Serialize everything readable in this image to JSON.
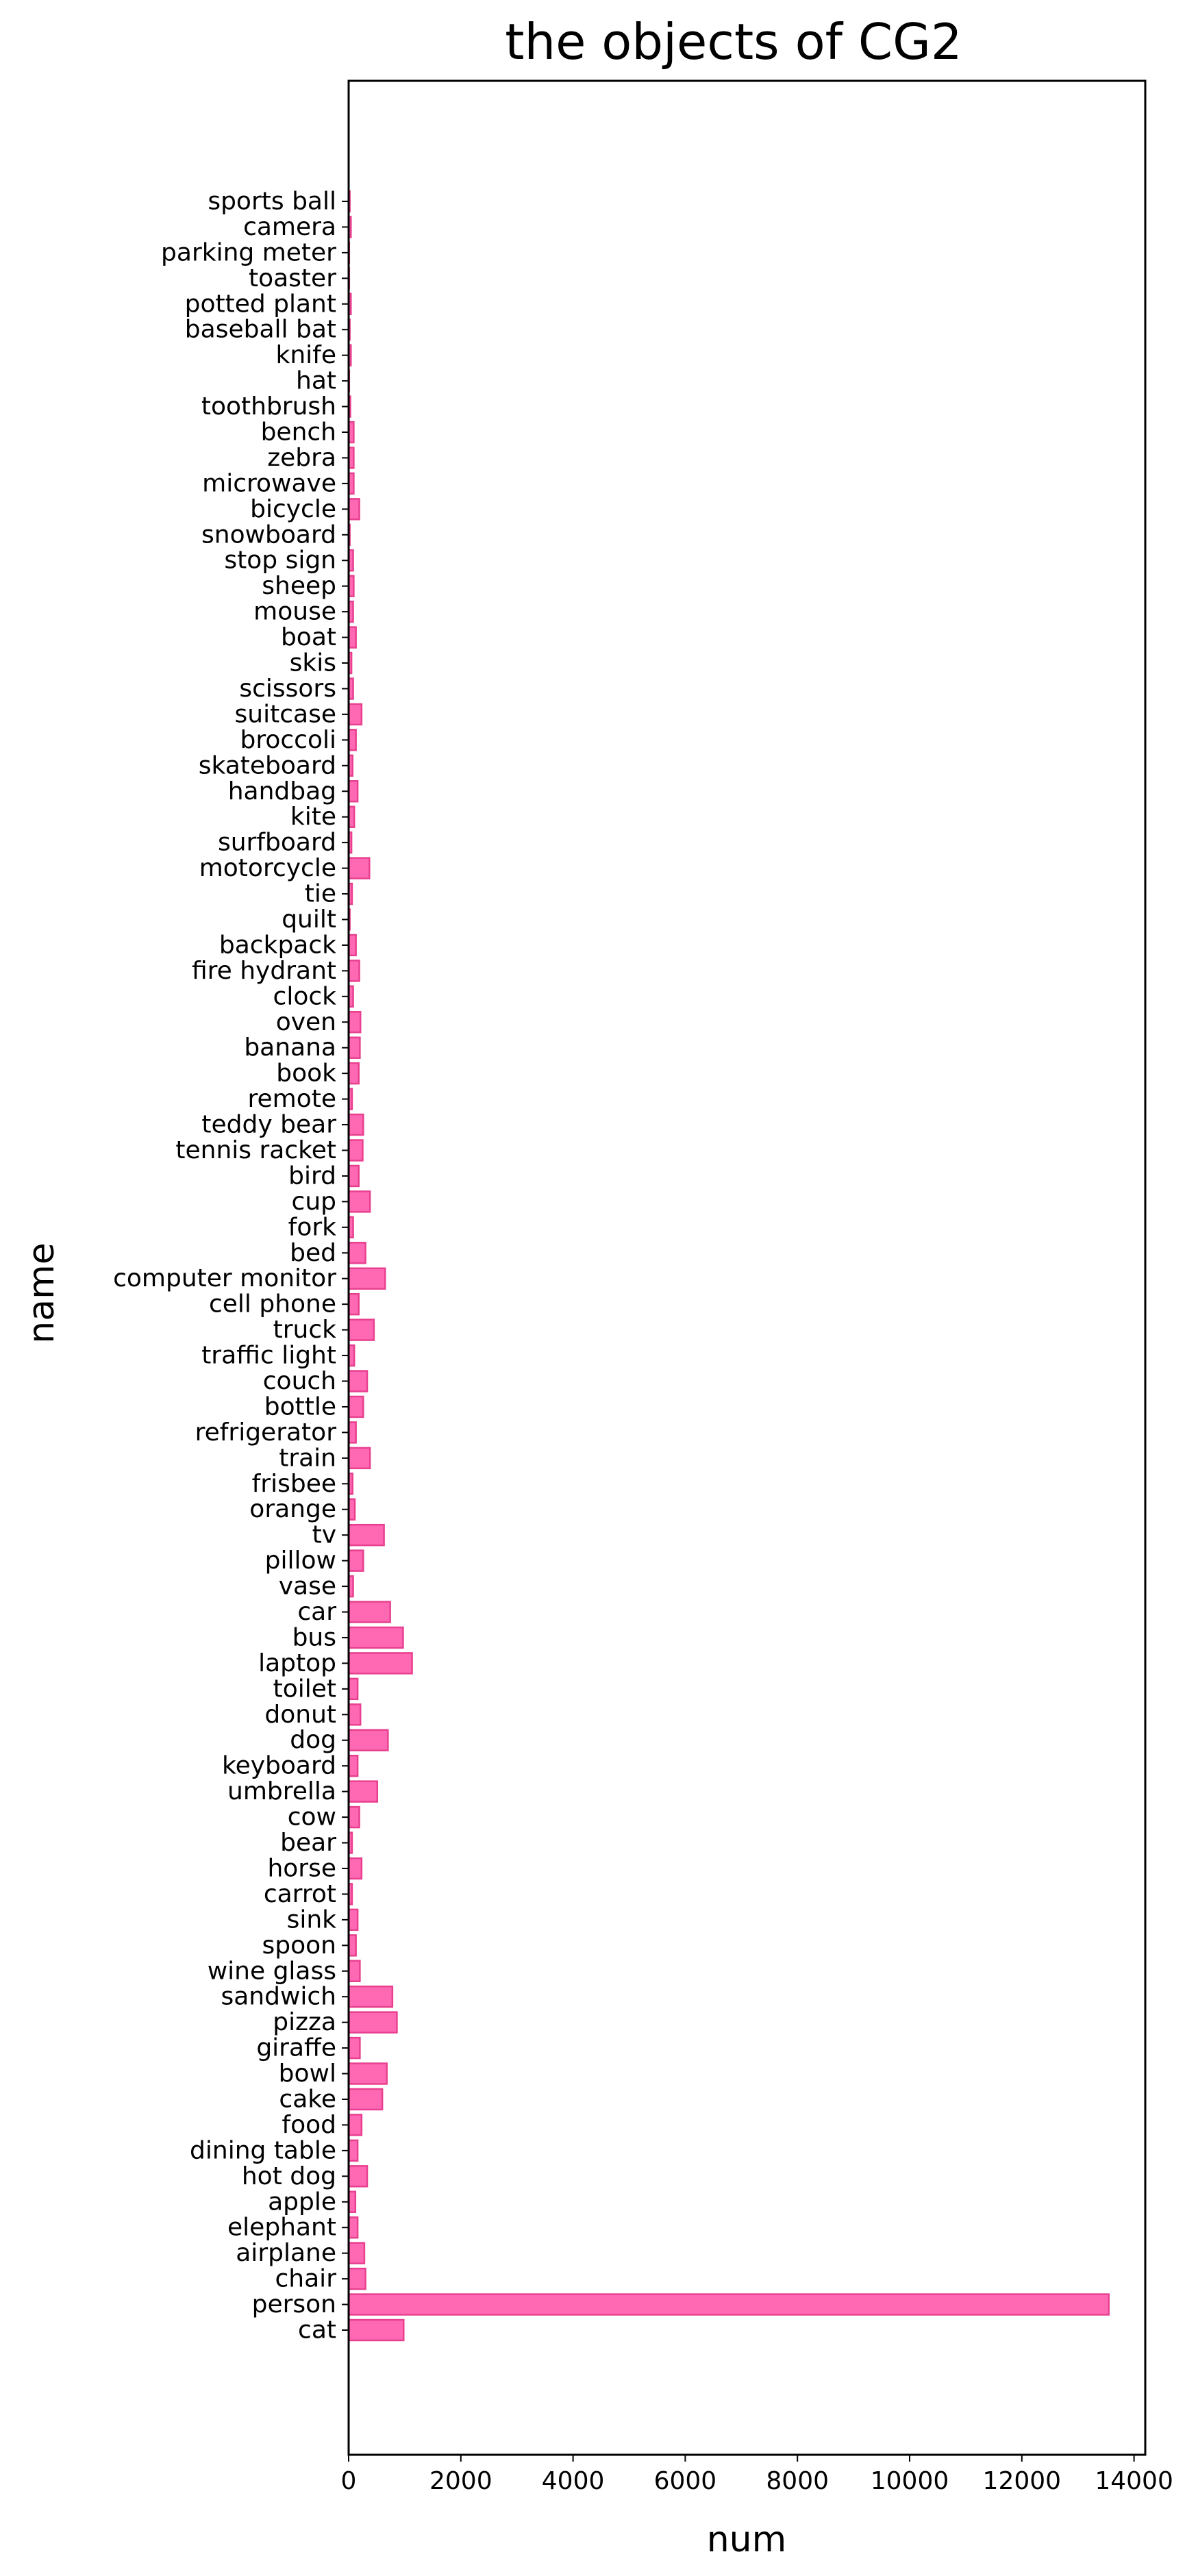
{
  "chart_data": {
    "type": "bar",
    "orientation": "horizontal",
    "title": "the objects of CG2",
    "xlabel": "num",
    "ylabel": "name",
    "xlim": [
      0,
      14200
    ],
    "xticks": [
      0,
      2000,
      4000,
      6000,
      8000,
      10000,
      12000,
      14000
    ],
    "grid": false,
    "bar_color": "#ff69b4",
    "bar_edge_color": "#e8408f",
    "categories": [
      "cat",
      "person",
      "chair",
      "airplane",
      "elephant",
      "apple",
      "hot dog",
      "dining table",
      "food",
      "cake",
      "bowl",
      "giraffe",
      "pizza",
      "sandwich",
      "wine glass",
      "spoon",
      "sink",
      "carrot",
      "horse",
      "bear",
      "cow",
      "umbrella",
      "keyboard",
      "dog",
      "donut",
      "toilet",
      "laptop",
      "bus",
      "car",
      "vase",
      "pillow",
      "tv",
      "orange",
      "frisbee",
      "train",
      "refrigerator",
      "bottle",
      "couch",
      "traffic light",
      "truck",
      "cell phone",
      "computer monitor",
      "bed",
      "fork",
      "cup",
      "bird",
      "tennis racket",
      "teddy bear",
      "remote",
      "book",
      "banana",
      "oven",
      "clock",
      "fire hydrant",
      "backpack",
      "quilt",
      "tie",
      "motorcycle",
      "surfboard",
      "kite",
      "handbag",
      "skateboard",
      "broccoli",
      "suitcase",
      "scissors",
      "skis",
      "boat",
      "mouse",
      "sheep",
      "stop sign",
      "snowboard",
      "bicycle",
      "microwave",
      "zebra",
      "bench",
      "toothbrush",
      "hat",
      "knife",
      "baseball bat",
      "potted plant",
      "toaster",
      "parking meter",
      "camera",
      "sports ball"
    ],
    "values": [
      980,
      13550,
      300,
      280,
      160,
      120,
      330,
      160,
      230,
      600,
      680,
      200,
      860,
      780,
      200,
      130,
      160,
      60,
      230,
      60,
      190,
      510,
      160,
      700,
      210,
      160,
      1130,
      970,
      740,
      80,
      260,
      630,
      110,
      70,
      380,
      130,
      260,
      330,
      100,
      450,
      180,
      650,
      300,
      80,
      380,
      180,
      250,
      260,
      60,
      180,
      200,
      210,
      80,
      190,
      130,
      20,
      60,
      370,
      50,
      100,
      160,
      70,
      130,
      230,
      80,
      50,
      130,
      80,
      90,
      80,
      20,
      190,
      90,
      90,
      90,
      30,
      10,
      40,
      20,
      40,
      10,
      10,
      40,
      20
    ]
  }
}
